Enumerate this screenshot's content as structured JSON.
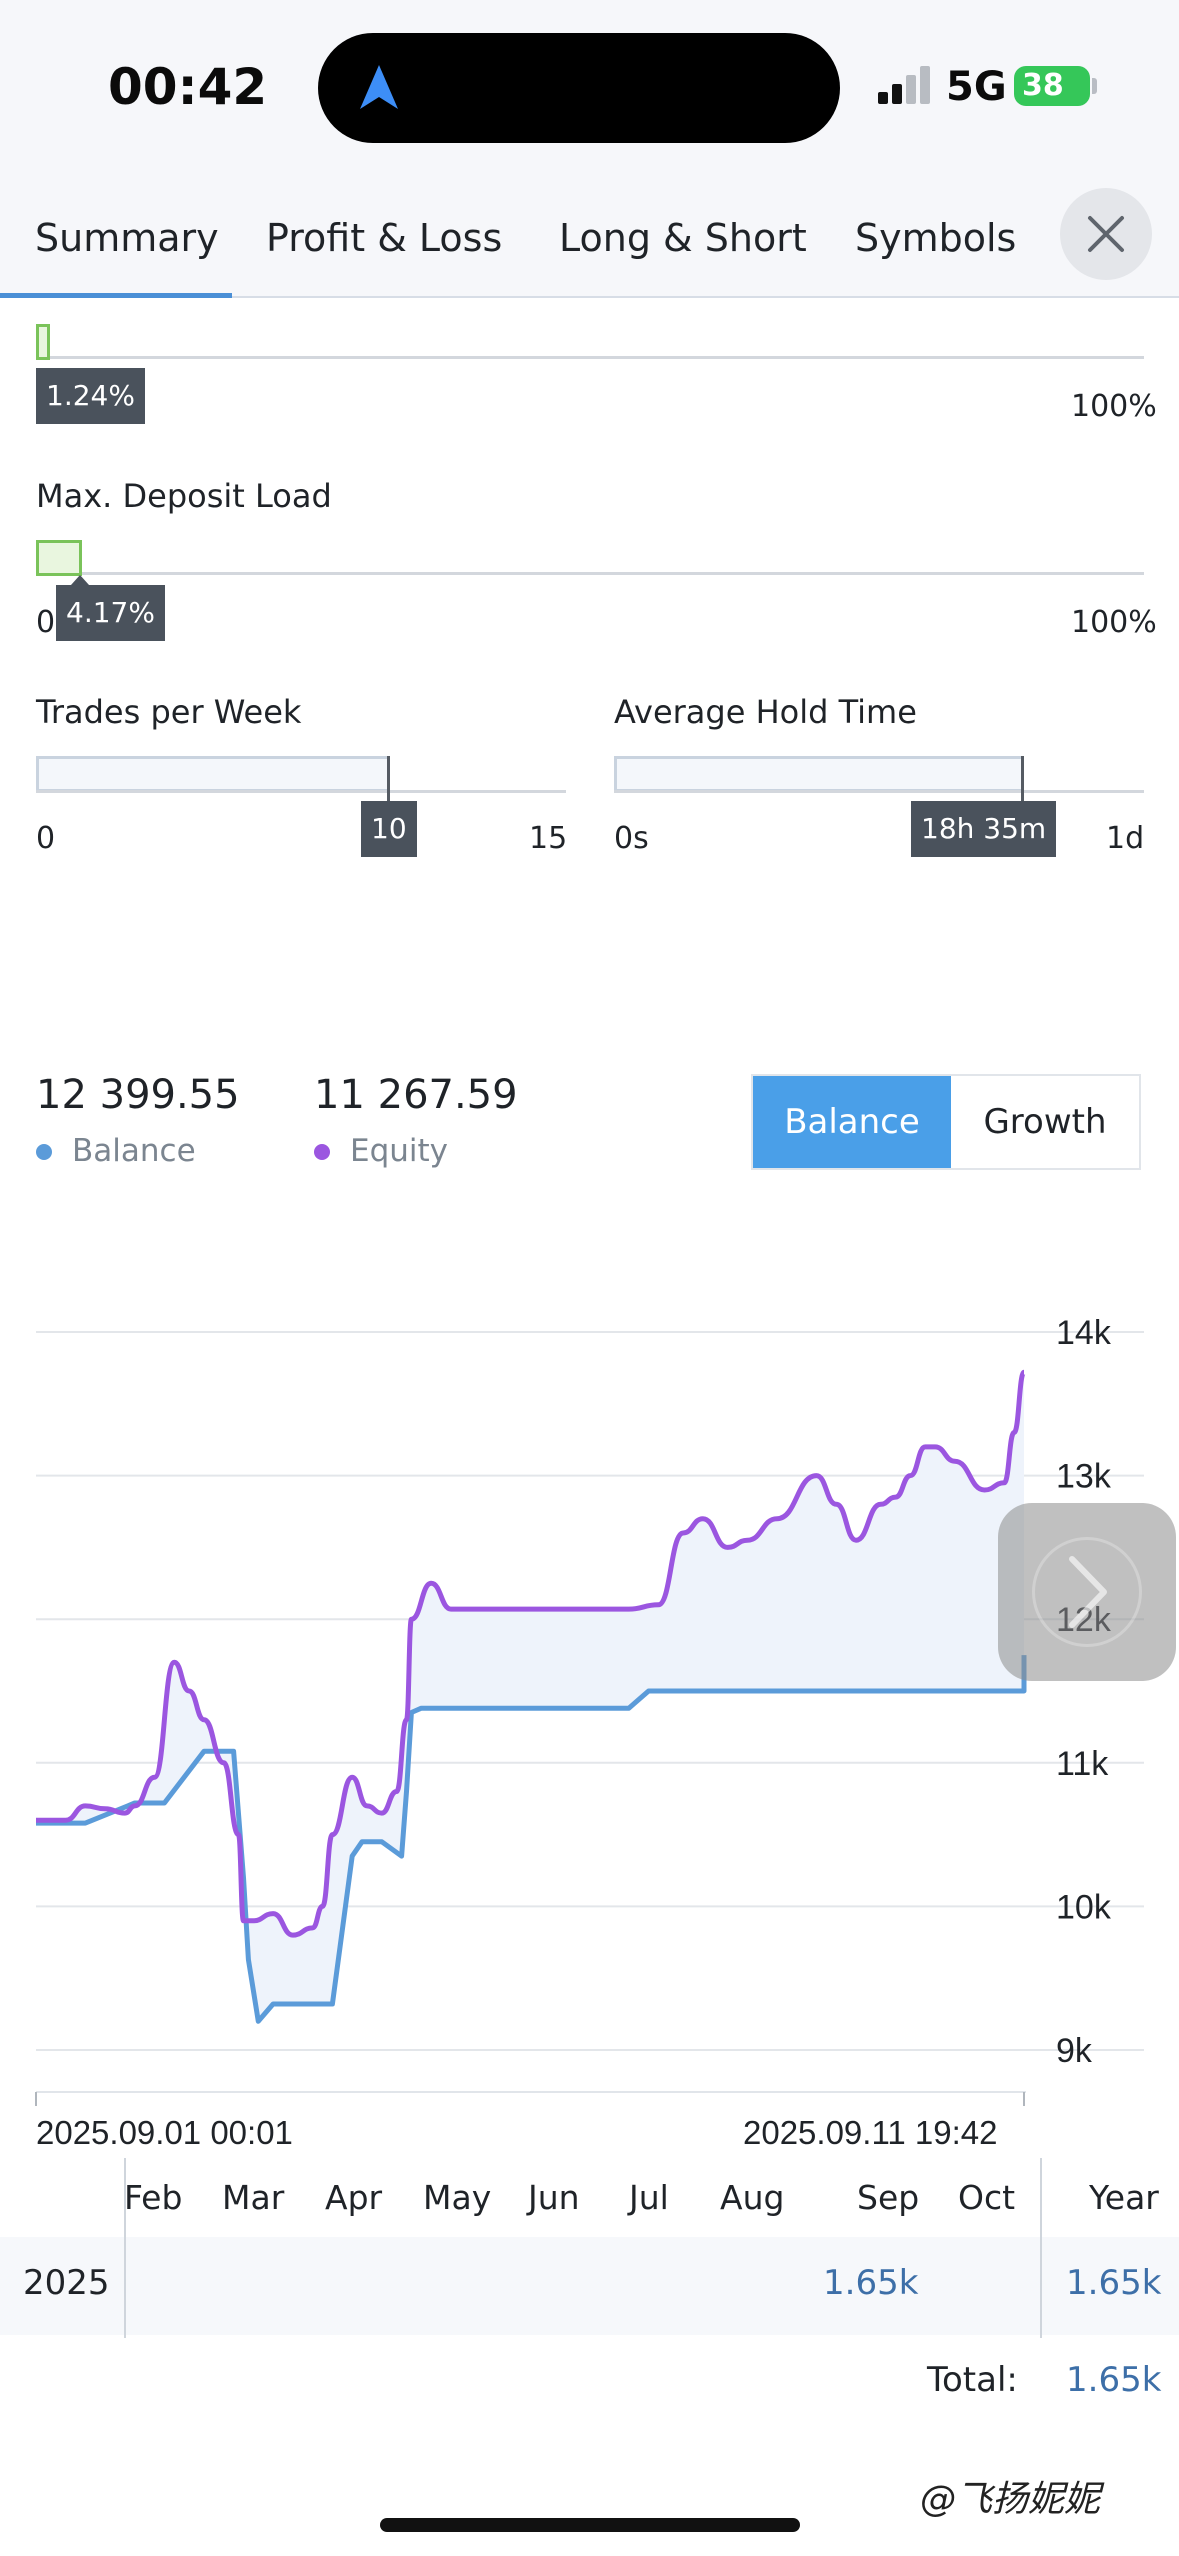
{
  "status_bar": {
    "time": "00:42",
    "network": "5G",
    "battery": "38"
  },
  "tabs": [
    {
      "label": "Summary",
      "active": true
    },
    {
      "label": "Profit & Loss"
    },
    {
      "label": "Long & Short"
    },
    {
      "label": "Symbols"
    }
  ],
  "gauge_top": {
    "value_label": "1.24%",
    "max_label": "100%",
    "value": 0.0124
  },
  "deposit_load": {
    "title": "Max. Deposit Load",
    "min_label": "0%",
    "value_label": "4.17%",
    "max_label": "100%",
    "value": 0.0417
  },
  "trades_per_week": {
    "title": "Trades per Week",
    "min_label": "0",
    "value_label": "10",
    "max_label": "15",
    "value": 10,
    "max": 15
  },
  "hold_time": {
    "title": "Average Hold Time",
    "min_label": "0s",
    "value_label": "18h 35m",
    "max_label": "1d",
    "value": 0.774
  },
  "summary": {
    "balance_value": "12 399.55",
    "balance_label": "Balance",
    "equity_value": "11 267.59",
    "equity_label": "Equity"
  },
  "toggle": {
    "active": "Balance",
    "inactive": "Growth"
  },
  "colors": {
    "balance": "#5b9bd9",
    "equity": "#9b56e0",
    "accent": "#4a9fe8",
    "area": "#eef3fb"
  },
  "chart_data": {
    "type": "area",
    "x_start_label": "2025.09.01 00:01",
    "x_end_label": "2025.09.11 19:42",
    "y_ticks": [
      "14k",
      "13k",
      "12k",
      "11k",
      "10k",
      "9k"
    ],
    "ylim": [
      9000,
      14000
    ],
    "grid": true,
    "series": [
      {
        "name": "Balance",
        "x": [
          0,
          0.05,
          0.1,
          0.13,
          0.17,
          0.2,
          0.21,
          0.215,
          0.225,
          0.24,
          0.3,
          0.32,
          0.33,
          0.35,
          0.37,
          0.375,
          0.38,
          0.39,
          0.6,
          0.62,
          1.0,
          1.0
        ],
        "values": [
          10580,
          10580,
          10720,
          10720,
          11080,
          11080,
          10200,
          9630,
          9200,
          9320,
          9320,
          10350,
          10450,
          10450,
          10350,
          10800,
          11350,
          11380,
          11380,
          11500,
          11500,
          11750
        ]
      },
      {
        "name": "Equity",
        "x": [
          0,
          0.03,
          0.05,
          0.07,
          0.09,
          0.1,
          0.12,
          0.14,
          0.155,
          0.17,
          0.19,
          0.205,
          0.21,
          0.22,
          0.24,
          0.26,
          0.28,
          0.29,
          0.3,
          0.32,
          0.335,
          0.35,
          0.365,
          0.375,
          0.38,
          0.4,
          0.42,
          0.45,
          0.5,
          0.6,
          0.63,
          0.655,
          0.675,
          0.7,
          0.72,
          0.75,
          0.79,
          0.81,
          0.83,
          0.855,
          0.87,
          0.885,
          0.9,
          0.91,
          0.93,
          0.96,
          0.98,
          0.99,
          1.0
        ],
        "values": [
          10600,
          10600,
          10700,
          10680,
          10650,
          10700,
          10900,
          11700,
          11500,
          11300,
          11000,
          10500,
          9900,
          9900,
          9950,
          9800,
          9850,
          10000,
          10500,
          10900,
          10700,
          10650,
          10800,
          11300,
          12000,
          12250,
          12070,
          12070,
          12070,
          12070,
          12100,
          12600,
          12700,
          12500,
          12550,
          12700,
          13000,
          12800,
          12550,
          12800,
          12850,
          13000,
          13200,
          13200,
          13100,
          12900,
          12950,
          13300,
          13720
        ]
      }
    ]
  },
  "monthly": {
    "months": [
      "Feb",
      "Mar",
      "Apr",
      "May",
      "Jun",
      "Jul",
      "Aug",
      "Sep",
      "Oct"
    ],
    "year_header": "Year",
    "row_year": "2025",
    "sep_value": "1.65k",
    "year_value": "1.65k",
    "total_label": "Total:",
    "total_value": "1.65k"
  },
  "watermark": "@飞扬妮妮"
}
